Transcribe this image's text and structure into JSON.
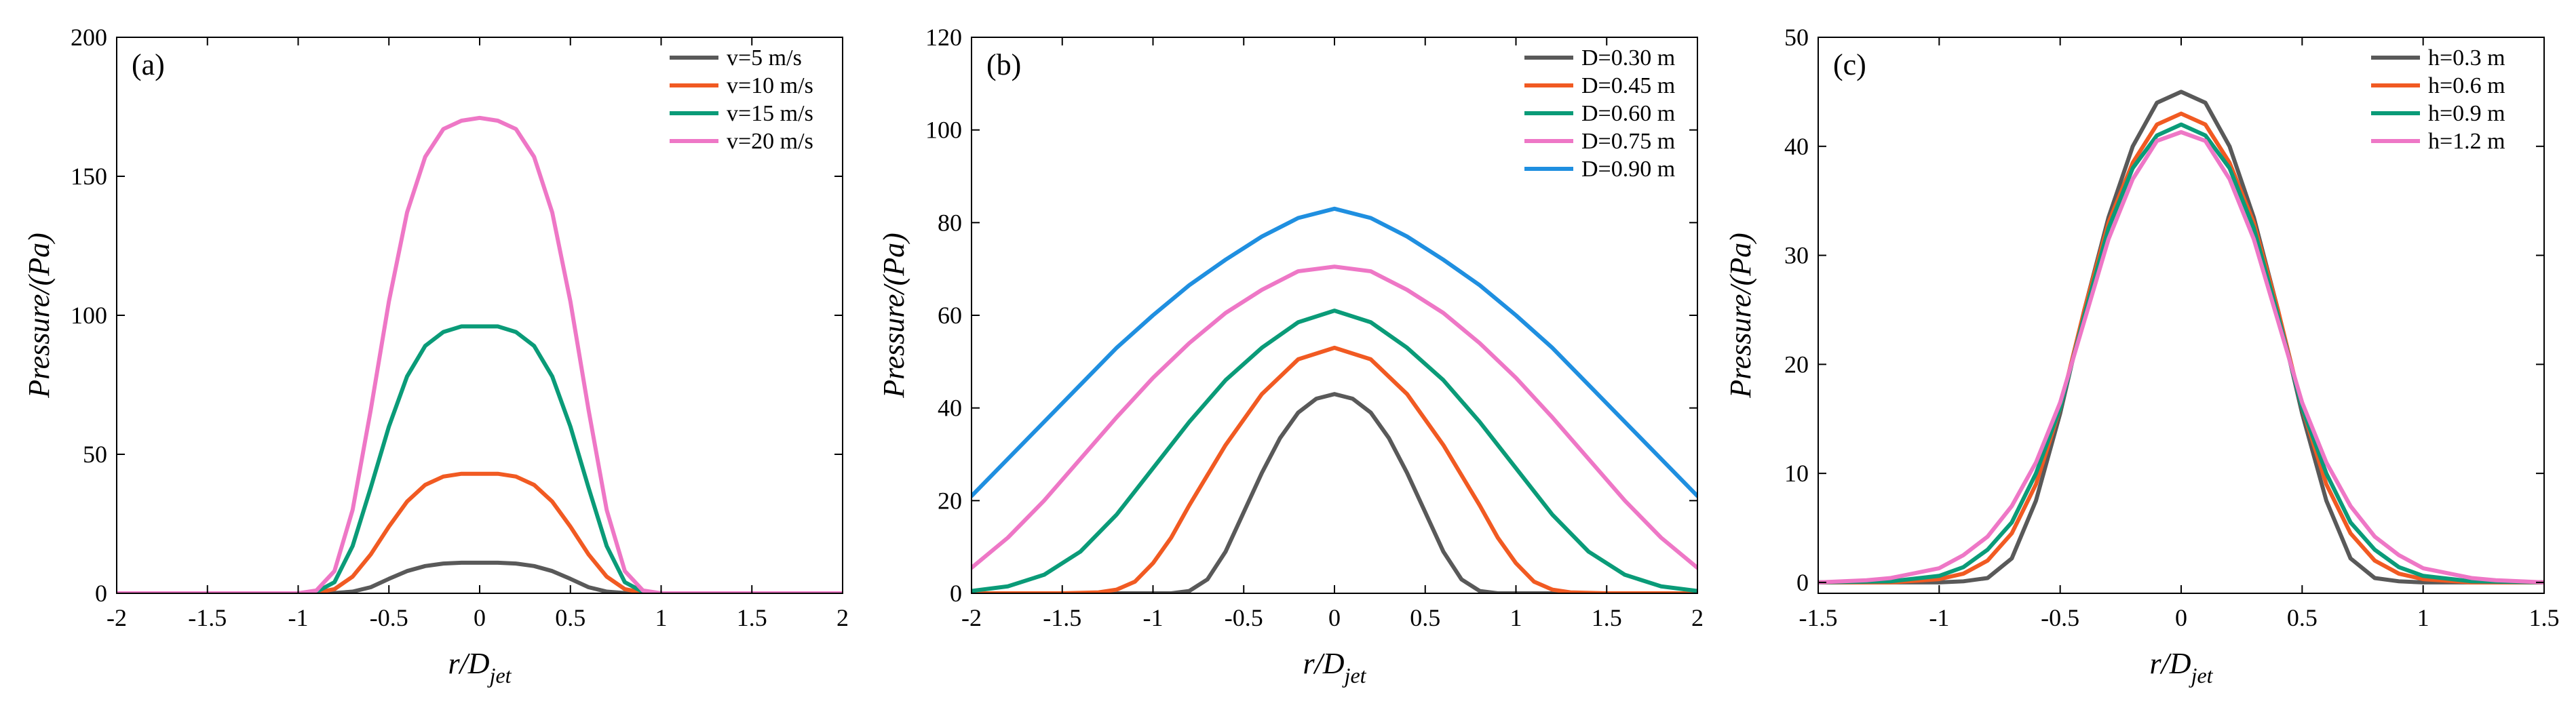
{
  "chart_data": [
    {
      "type": "line",
      "panel_label": "(a)",
      "xlabel_main": "r/D",
      "xlabel_sub": "jet",
      "ylabel": "Pressure/(Pa)",
      "xlim": [
        -2,
        2
      ],
      "ylim": [
        0,
        200
      ],
      "xticks": [
        -2,
        -1.5,
        -1,
        -0.5,
        0,
        0.5,
        1,
        1.5,
        2
      ],
      "xtick_labels": [
        "-2",
        "-1.5",
        "-1",
        "-0.5",
        "0",
        "0.5",
        "1",
        "1.5",
        "2"
      ],
      "yticks": [
        0,
        50,
        100,
        150,
        200
      ],
      "ytick_labels": [
        "0",
        "50",
        "100",
        "150",
        "200"
      ],
      "legend_position": "top-right",
      "series": [
        {
          "name": "v=5 m/s",
          "color": "#595959",
          "x": [
            -2,
            -1,
            -0.9,
            -0.8,
            -0.7,
            -0.6,
            -0.5,
            -0.4,
            -0.3,
            -0.2,
            -0.1,
            0,
            0.1,
            0.2,
            0.3,
            0.4,
            0.5,
            0.6,
            0.7,
            0.8,
            0.9,
            1,
            2
          ],
          "y": [
            0,
            0,
            0,
            0.1,
            0.6,
            2.2,
            5.2,
            8,
            9.8,
            10.7,
            11,
            11,
            11,
            10.7,
            9.8,
            8,
            5.2,
            2.2,
            0.6,
            0.1,
            0,
            0,
            0
          ]
        },
        {
          "name": "v=10 m/s",
          "color": "#f15a22",
          "x": [
            -2,
            -1,
            -0.9,
            -0.8,
            -0.7,
            -0.6,
            -0.5,
            -0.4,
            -0.3,
            -0.2,
            -0.1,
            0,
            0.1,
            0.2,
            0.3,
            0.4,
            0.5,
            0.6,
            0.7,
            0.8,
            0.9,
            1,
            2
          ],
          "y": [
            0,
            0,
            0.2,
            1.5,
            6,
            14,
            24,
            33,
            39,
            42,
            43,
            43,
            43,
            42,
            39,
            33,
            24,
            14,
            6,
            1.5,
            0.2,
            0,
            0
          ]
        },
        {
          "name": "v=15 m/s",
          "color": "#0a9b78",
          "x": [
            -2,
            -1,
            -0.9,
            -0.8,
            -0.7,
            -0.6,
            -0.5,
            -0.4,
            -0.3,
            -0.2,
            -0.1,
            0,
            0.1,
            0.2,
            0.3,
            0.4,
            0.5,
            0.6,
            0.7,
            0.8,
            0.9,
            1,
            2
          ],
          "y": [
            0,
            0,
            0.5,
            4,
            17,
            38,
            60,
            78,
            89,
            94,
            96,
            96,
            96,
            94,
            89,
            78,
            60,
            38,
            17,
            4,
            0.5,
            0,
            0
          ]
        },
        {
          "name": "v=20 m/s",
          "color": "#ee77c6",
          "x": [
            -2,
            -1,
            -0.9,
            -0.8,
            -0.7,
            -0.6,
            -0.5,
            -0.4,
            -0.3,
            -0.2,
            -0.1,
            0,
            0.1,
            0.2,
            0.3,
            0.4,
            0.5,
            0.6,
            0.7,
            0.8,
            0.9,
            1,
            2
          ],
          "y": [
            0,
            0,
            1,
            8,
            30,
            66,
            105,
            137,
            157,
            167,
            170,
            171,
            170,
            167,
            157,
            137,
            105,
            66,
            30,
            8,
            1,
            0,
            0
          ]
        }
      ]
    },
    {
      "type": "line",
      "panel_label": "(b)",
      "xlabel_main": "r/D",
      "xlabel_sub": "jet",
      "ylabel": "Pressure/(Pa)",
      "xlim": [
        -2,
        2
      ],
      "ylim": [
        0,
        120
      ],
      "xticks": [
        -2,
        -1.5,
        -1,
        -0.5,
        0,
        0.5,
        1,
        1.5,
        2
      ],
      "xtick_labels": [
        "-2",
        "-1.5",
        "-1",
        "-0.5",
        "0",
        "0.5",
        "1",
        "1.5",
        "2"
      ],
      "yticks": [
        0,
        20,
        40,
        60,
        80,
        100,
        120
      ],
      "ytick_labels": [
        "0",
        "20",
        "40",
        "60",
        "80",
        "100",
        "120"
      ],
      "legend_position": "top-right",
      "series": [
        {
          "name": "D=0.30 m",
          "color": "#595959",
          "x": [
            -2,
            -1,
            -0.9,
            -0.8,
            -0.7,
            -0.6,
            -0.5,
            -0.4,
            -0.3,
            -0.2,
            -0.1,
            0,
            0.1,
            0.2,
            0.3,
            0.4,
            0.5,
            0.6,
            0.7,
            0.8,
            0.9,
            1,
            2
          ],
          "y": [
            0,
            0,
            0,
            0.5,
            3,
            9,
            17.5,
            26,
            33.5,
            39,
            42,
            43,
            42,
            39,
            33.5,
            26,
            17.5,
            9,
            3,
            0.5,
            0,
            0,
            0
          ]
        },
        {
          "name": "D=0.45 m",
          "color": "#f15a22",
          "x": [
            -2,
            -1.5,
            -1.3,
            -1.2,
            -1.1,
            -1,
            -0.9,
            -0.8,
            -0.6,
            -0.4,
            -0.2,
            0,
            0.2,
            0.4,
            0.6,
            0.8,
            0.9,
            1,
            1.1,
            1.2,
            1.3,
            1.5,
            2
          ],
          "y": [
            0,
            0,
            0.2,
            0.8,
            2.5,
            6.5,
            12,
            19,
            32,
            43,
            50.5,
            53,
            50.5,
            43,
            32,
            19,
            12,
            6.5,
            2.5,
            0.8,
            0.2,
            0,
            0
          ]
        },
        {
          "name": "D=0.60 m",
          "color": "#0a9b78",
          "x": [
            -2,
            -1.8,
            -1.6,
            -1.4,
            -1.2,
            -1,
            -0.8,
            -0.6,
            -0.4,
            -0.2,
            0,
            0.2,
            0.4,
            0.6,
            0.8,
            1,
            1.2,
            1.4,
            1.6,
            1.8,
            2
          ],
          "y": [
            0.5,
            1.5,
            4,
            9,
            17,
            27,
            37,
            46,
            53,
            58.5,
            61,
            58.5,
            53,
            46,
            37,
            27,
            17,
            9,
            4,
            1.5,
            0.5
          ]
        },
        {
          "name": "D=0.75 m",
          "color": "#ee77c6",
          "x": [
            -2,
            -1.8,
            -1.6,
            -1.4,
            -1.2,
            -1,
            -0.8,
            -0.6,
            -0.4,
            -0.2,
            0,
            0.2,
            0.4,
            0.6,
            0.8,
            1,
            1.2,
            1.4,
            1.6,
            1.8,
            2
          ],
          "y": [
            5.5,
            12,
            20,
            29,
            38,
            46.5,
            54,
            60.5,
            65.5,
            69.5,
            70.5,
            69.5,
            65.5,
            60.5,
            54,
            46.5,
            38,
            29,
            20,
            12,
            5.5
          ]
        },
        {
          "name": "D=0.90 m",
          "color": "#1f8fe0",
          "x": [
            -2,
            -1.8,
            -1.6,
            -1.4,
            -1.2,
            -1,
            -0.8,
            -0.6,
            -0.4,
            -0.2,
            0,
            0.2,
            0.4,
            0.6,
            0.8,
            1,
            1.2,
            1.4,
            1.6,
            1.8,
            2
          ],
          "y": [
            21,
            29,
            37,
            45,
            53,
            60,
            66.5,
            72,
            77,
            81,
            83,
            81,
            77,
            72,
            66.5,
            60,
            53,
            45,
            37,
            29,
            21
          ]
        }
      ]
    },
    {
      "type": "line",
      "panel_label": "(c)",
      "xlabel_main": "r/D",
      "xlabel_sub": "jet",
      "ylabel": "Pressure/(Pa)",
      "xlim": [
        -1.5,
        1.5
      ],
      "ylim": [
        -1,
        50
      ],
      "xticks": [
        -1.5,
        -1,
        -0.5,
        0,
        0.5,
        1,
        1.5
      ],
      "xtick_labels": [
        "-1.5",
        "-1",
        "-0.5",
        "0",
        "0.5",
        "1",
        "1.5"
      ],
      "yticks": [
        0,
        10,
        20,
        30,
        40,
        50
      ],
      "ytick_labels": [
        "0",
        "10",
        "20",
        "30",
        "40",
        "50"
      ],
      "legend_position": "top-right",
      "series": [
        {
          "name": "h=0.3 m",
          "color": "#595959",
          "x": [
            -1.5,
            -1,
            -0.9,
            -0.8,
            -0.7,
            -0.6,
            -0.5,
            -0.4,
            -0.3,
            -0.2,
            -0.1,
            0,
            0.1,
            0.2,
            0.3,
            0.4,
            0.5,
            0.6,
            0.7,
            0.8,
            0.9,
            1,
            1.5
          ],
          "y": [
            0,
            0,
            0.1,
            0.4,
            2.2,
            7.5,
            15.5,
            25,
            33.5,
            40,
            44,
            45,
            44,
            40,
            33.5,
            25,
            15.5,
            7.5,
            2.2,
            0.4,
            0.1,
            0,
            0
          ]
        },
        {
          "name": "h=0.6 m",
          "color": "#f15a22",
          "x": [
            -1.5,
            -1.2,
            -1,
            -0.9,
            -0.8,
            -0.7,
            -0.6,
            -0.5,
            -0.4,
            -0.3,
            -0.2,
            -0.1,
            0,
            0.1,
            0.2,
            0.3,
            0.4,
            0.5,
            0.6,
            0.7,
            0.8,
            0.9,
            1,
            1.2,
            1.5
          ],
          "y": [
            0,
            0,
            0.3,
            0.8,
            2,
            4.5,
            9,
            16,
            25,
            33,
            38.5,
            42,
            43,
            42,
            38.5,
            33,
            25,
            16,
            9,
            4.5,
            2,
            0.8,
            0.3,
            0,
            0
          ]
        },
        {
          "name": "h=0.9 m",
          "color": "#0a9b78",
          "x": [
            -1.5,
            -1.2,
            -1,
            -0.9,
            -0.8,
            -0.7,
            -0.6,
            -0.5,
            -0.4,
            -0.3,
            -0.2,
            -0.1,
            0,
            0.1,
            0.2,
            0.3,
            0.4,
            0.5,
            0.6,
            0.7,
            0.8,
            0.9,
            1,
            1.2,
            1.5
          ],
          "y": [
            0,
            0.1,
            0.6,
            1.4,
            3,
            5.5,
            10,
            16,
            24.5,
            32.5,
            38,
            41,
            42,
            41,
            38,
            32.5,
            24.5,
            16,
            10,
            5.5,
            3,
            1.4,
            0.6,
            0.1,
            0
          ]
        },
        {
          "name": "h=1.2 m",
          "color": "#ee77c6",
          "x": [
            -1.5,
            -1.3,
            -1.2,
            -1,
            -0.9,
            -0.8,
            -0.7,
            -0.6,
            -0.5,
            -0.4,
            -0.3,
            -0.2,
            -0.1,
            0,
            0.1,
            0.2,
            0.3,
            0.4,
            0.5,
            0.6,
            0.7,
            0.8,
            0.9,
            1,
            1.2,
            1.3,
            1.5
          ],
          "y": [
            0,
            0.2,
            0.4,
            1.3,
            2.5,
            4.2,
            7,
            11,
            16.5,
            24,
            31.5,
            37,
            40.5,
            41.3,
            40.5,
            37,
            31.5,
            24,
            16.5,
            11,
            7,
            4.2,
            2.5,
            1.3,
            0.4,
            0.2,
            0
          ]
        }
      ]
    }
  ]
}
